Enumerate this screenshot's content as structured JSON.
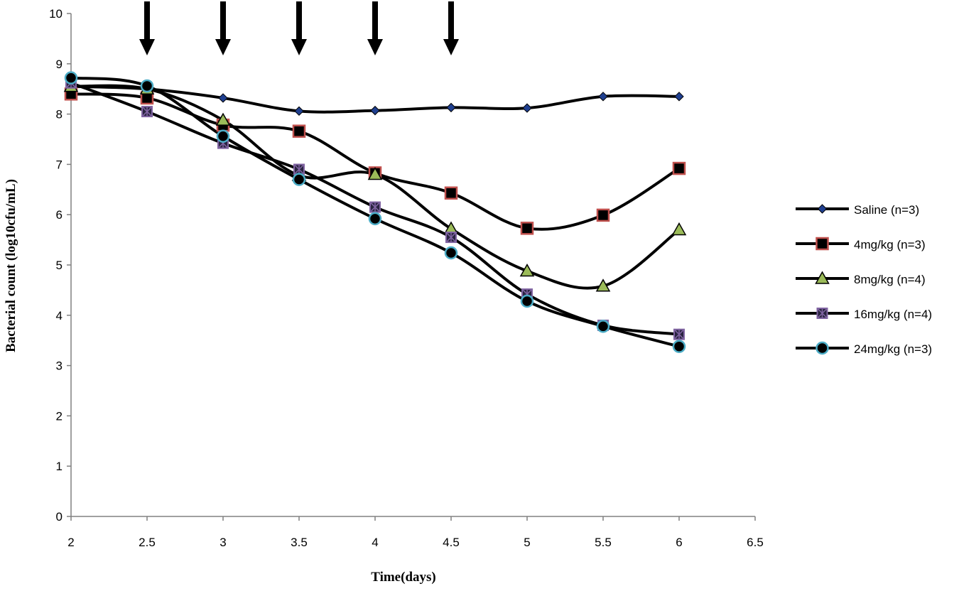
{
  "chart_data": {
    "type": "line",
    "title": "",
    "xlabel": "Time(days)",
    "ylabel": "Bacterial count (log10cfu/mL)",
    "xlim": [
      2,
      6.5
    ],
    "ylim": [
      0,
      10
    ],
    "x_ticks": [
      "2",
      "2.5",
      "3",
      "3.5",
      "4",
      "4.5",
      "5",
      "5.5",
      "6",
      "6.5"
    ],
    "y_ticks": [
      "0",
      "1",
      "2",
      "3",
      "4",
      "5",
      "6",
      "7",
      "8",
      "9",
      "10"
    ],
    "grid": false,
    "legend_position": "right",
    "dosing_arrows_x": [
      2.5,
      3,
      3.5,
      4,
      4.5
    ],
    "x": [
      2,
      2.5,
      3,
      3.5,
      4,
      4.5,
      5,
      5.5,
      6
    ],
    "series": [
      {
        "name": "Saline (n=3)",
        "marker": "diamond",
        "marker_color": "#1f3f8f",
        "values": [
          8.55,
          8.5,
          8.32,
          8.06,
          8.07,
          8.13,
          8.12,
          8.35,
          8.35
        ]
      },
      {
        "name": "4mg/kg (n=3)",
        "marker": "square",
        "marker_color": "#c0504d",
        "values": [
          8.4,
          8.32,
          7.78,
          7.66,
          6.83,
          6.43,
          5.73,
          5.99,
          6.92
        ]
      },
      {
        "name": "8mg/kg (n=4)",
        "marker": "triangle",
        "marker_color": "#9bbb59",
        "values": [
          8.55,
          8.5,
          7.88,
          6.78,
          6.8,
          5.72,
          4.88,
          4.58,
          5.7
        ]
      },
      {
        "name": "16mg/kg (n=4)",
        "marker": "star",
        "marker_color": "#8064a2",
        "values": [
          8.62,
          8.05,
          7.42,
          6.9,
          6.15,
          5.55,
          4.42,
          3.8,
          3.62
        ]
      },
      {
        "name": "24mg/kg (n=3)",
        "marker": "circle",
        "marker_color": "#4bacc6",
        "values": [
          8.72,
          8.56,
          7.56,
          6.7,
          5.92,
          5.24,
          4.28,
          3.78,
          3.38
        ]
      }
    ]
  }
}
